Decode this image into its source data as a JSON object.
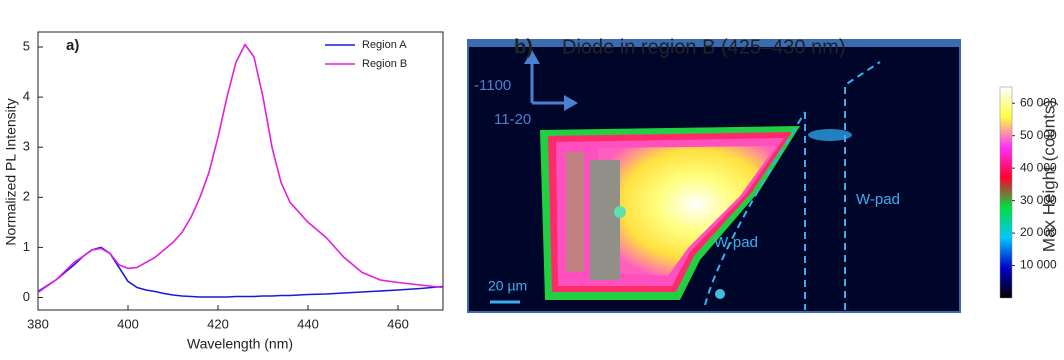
{
  "chart_data": [
    {
      "type": "line",
      "panel_label": "a)",
      "xlabel": "Wavelength (nm)",
      "ylabel": "Normalized PL Intensity",
      "xlim": [
        380,
        470
      ],
      "ylim": [
        -0.25,
        5.3
      ],
      "xticks": [
        380,
        400,
        420,
        440,
        460
      ],
      "yticks": [
        0,
        1,
        2,
        3,
        4,
        5
      ],
      "legend": "upper-right",
      "x": [
        380,
        384,
        388,
        390,
        392,
        394,
        396,
        398,
        400,
        402,
        404,
        406,
        408,
        410,
        412,
        414,
        416,
        418,
        420,
        422,
        424,
        426,
        428,
        430,
        432,
        434,
        436,
        438,
        440,
        444,
        448,
        452,
        456,
        460,
        465,
        470
      ],
      "series": [
        {
          "name": "Region A",
          "color": "#1a1adc",
          "values": [
            0.12,
            0.35,
            0.65,
            0.82,
            0.95,
            1.0,
            0.88,
            0.6,
            0.32,
            0.2,
            0.15,
            0.12,
            0.08,
            0.05,
            0.03,
            0.02,
            0.01,
            0.01,
            0.01,
            0.01,
            0.02,
            0.02,
            0.02,
            0.03,
            0.03,
            0.04,
            0.04,
            0.05,
            0.06,
            0.07,
            0.09,
            0.11,
            0.13,
            0.15,
            0.18,
            0.22
          ]
        },
        {
          "name": "Region B",
          "color": "#e020e0",
          "values": [
            0.1,
            0.35,
            0.7,
            0.82,
            0.95,
            0.98,
            0.88,
            0.65,
            0.58,
            0.6,
            0.7,
            0.8,
            0.95,
            1.1,
            1.3,
            1.6,
            2.0,
            2.5,
            3.2,
            4.0,
            4.7,
            5.05,
            4.8,
            4.0,
            3.0,
            2.3,
            1.9,
            1.7,
            1.5,
            1.2,
            0.8,
            0.5,
            0.35,
            0.3,
            0.25,
            0.2
          ]
        }
      ]
    },
    {
      "type": "image",
      "panel_label": "b)",
      "title": "Diode in region B (425–430 nm)",
      "annotations": [
        "-1100",
        "11-20",
        "W-pad",
        "W-pad",
        "20 µm"
      ],
      "colorbar_label": "Max Height (counts)",
      "zlim": [
        0,
        65000
      ],
      "zticks": [
        {
          "value": 10000,
          "label": "10 000"
        },
        {
          "value": 20000,
          "label": "20 000"
        },
        {
          "value": 30000,
          "label": "30 000"
        },
        {
          "value": 40000,
          "label": "40 000"
        },
        {
          "value": 50000,
          "label": "50 000"
        },
        {
          "value": 60000,
          "label": "60 000"
        }
      ],
      "colormap": [
        "#000000",
        "#0000c8",
        "#00c8ff",
        "#00e040",
        "#ff0030",
        "#ff30ff",
        "#ffff40",
        "#ffffff"
      ]
    }
  ]
}
